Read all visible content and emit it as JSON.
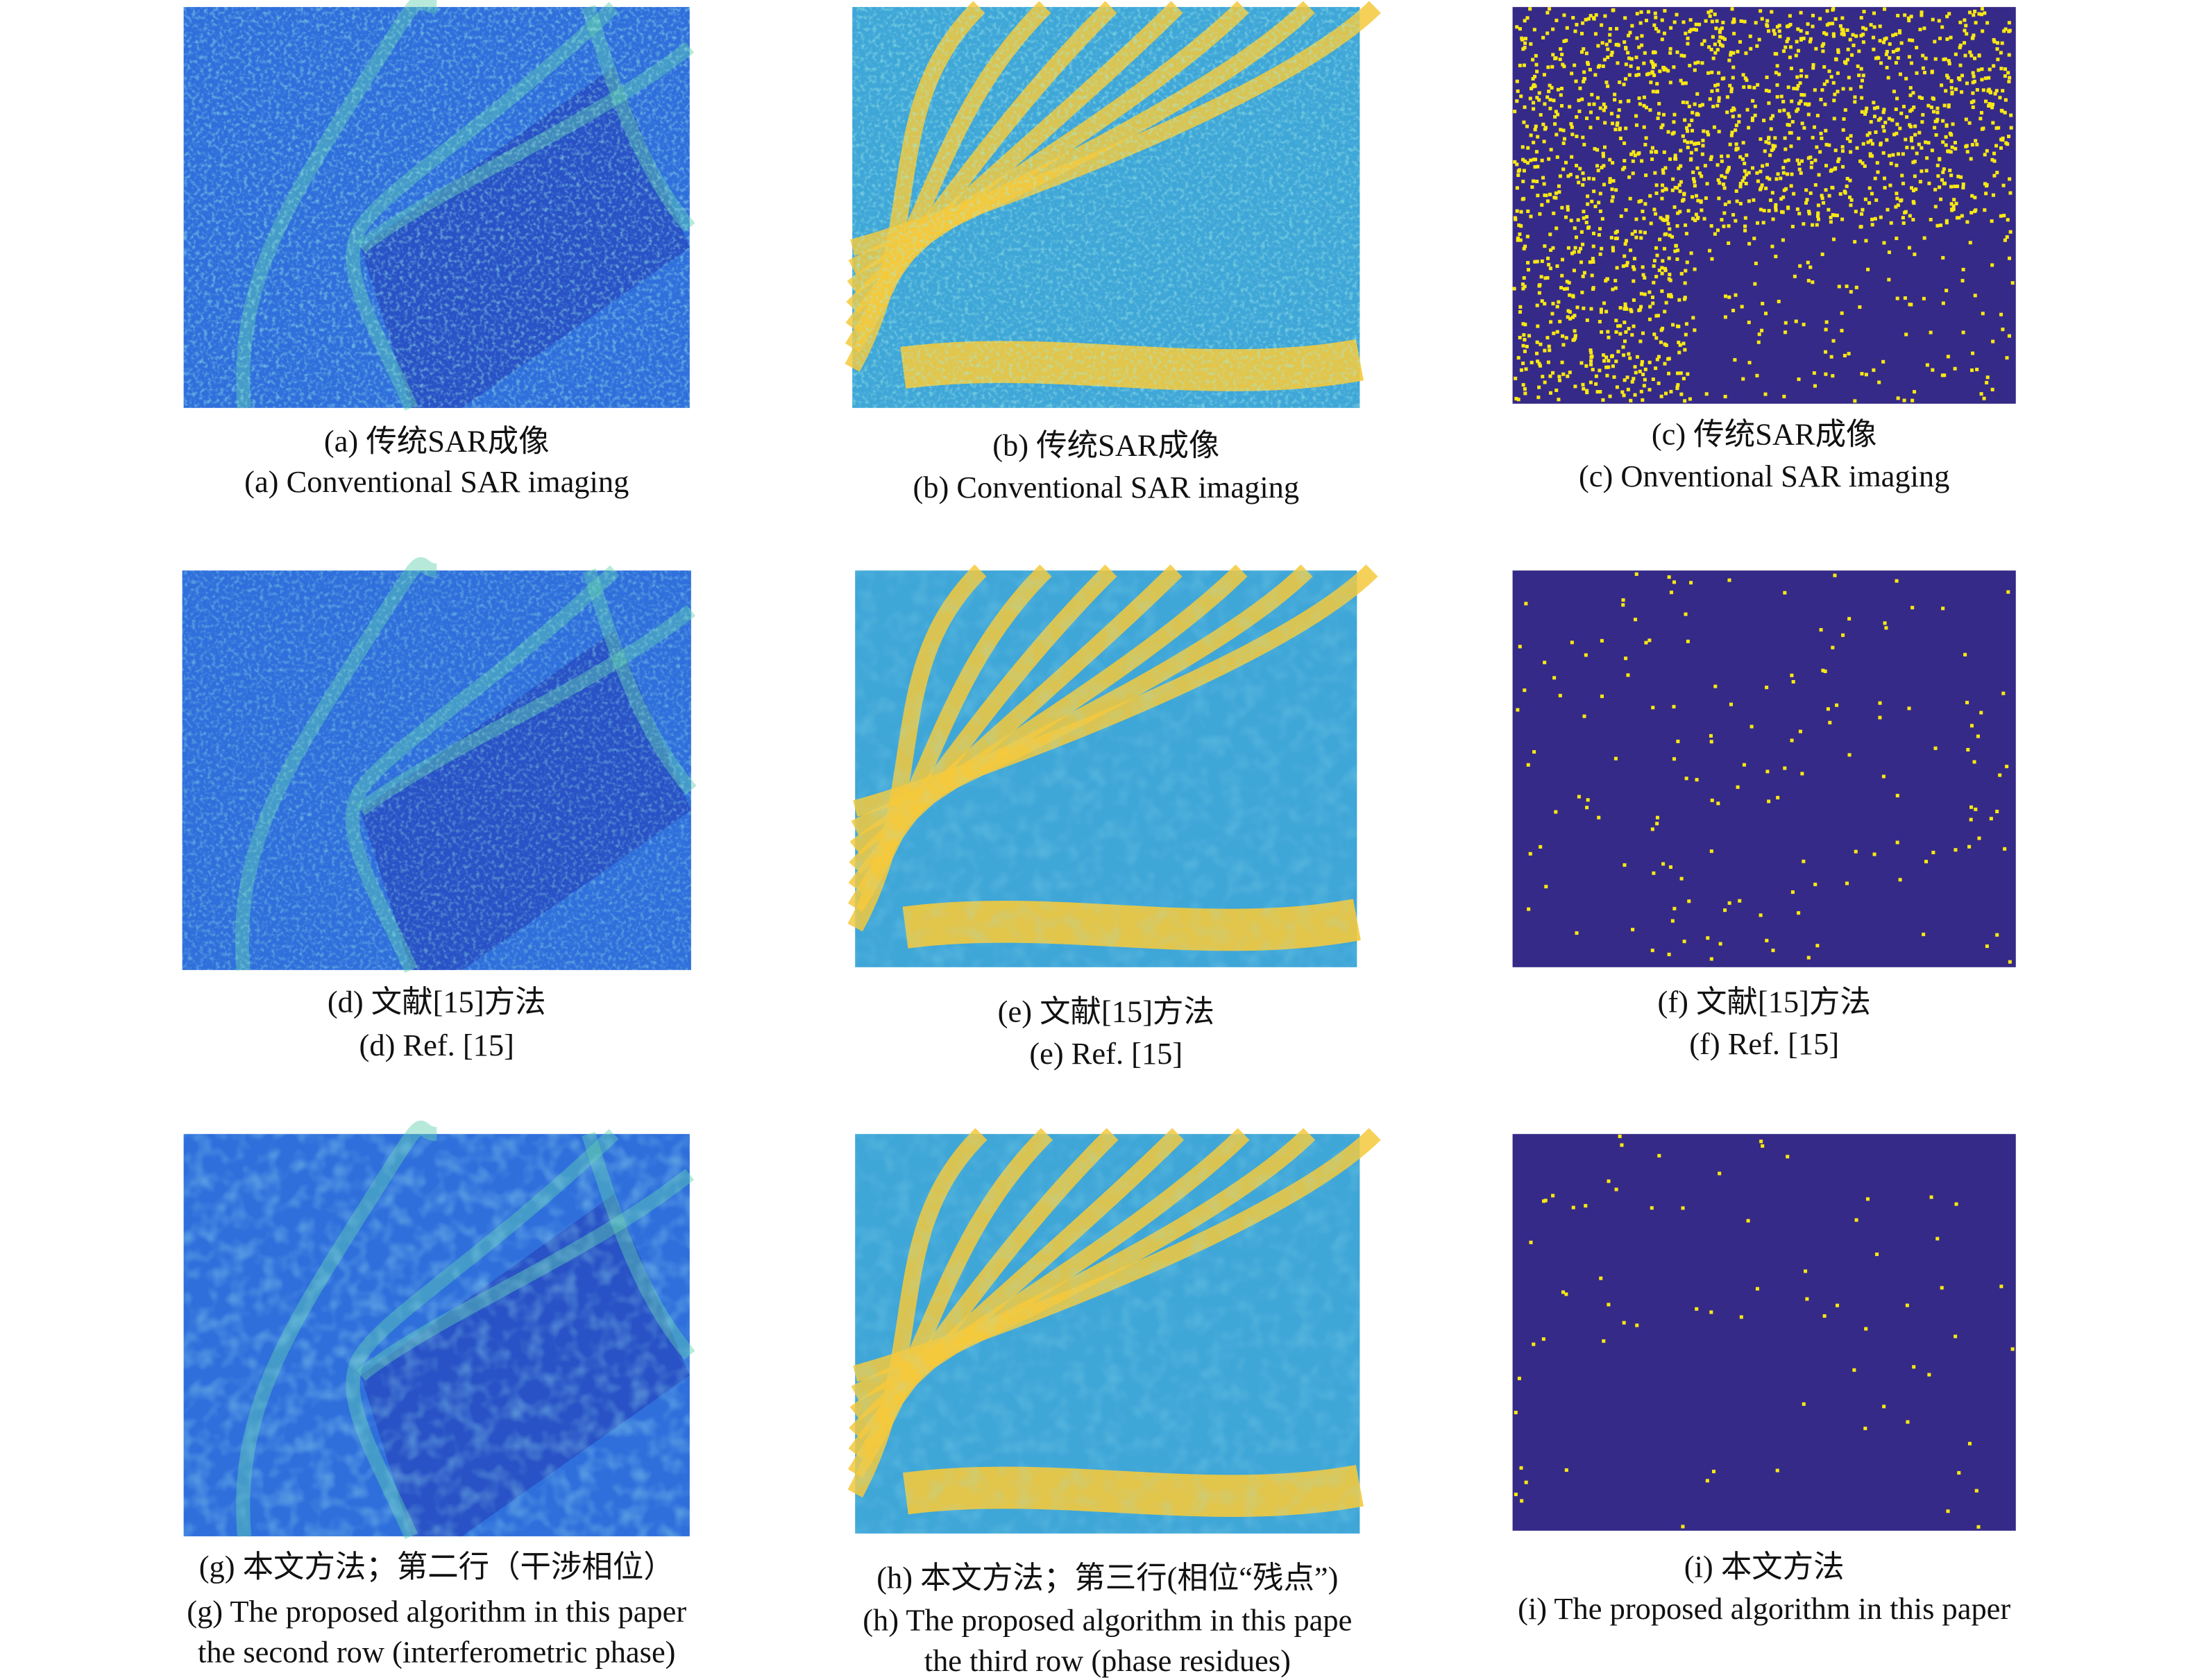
{
  "panels": [
    {
      "lines": [
        "(a) 传统SAR成像",
        "(a) Conventional SAR imaging"
      ]
    },
    {
      "lines": [
        "(b) 传统SAR成像",
        "(b) Conventional SAR imaging"
      ]
    },
    {
      "lines": [
        "(c) 传统SAR成像",
        "(c) Onventional SAR imaging"
      ]
    },
    {
      "lines": [
        "(d) 文献[15]方法",
        "(d) Ref. [15]"
      ]
    },
    {
      "lines": [
        "(e) 文献[15]方法",
        "(e) Ref. [15]"
      ]
    },
    {
      "lines": [
        "(f) 文献[15]方法",
        "(f) Ref. [15]"
      ]
    },
    {
      "lines": [
        "(g) 本文方法；第二行（干涉相位）",
        "(g) The proposed algorithm in this paper",
        "the second row (interferometric phase)"
      ]
    },
    {
      "lines": [
        "(h) 本文方法；第三行(相位“残点”)",
        "(h) The proposed algorithm in this pape",
        "the third row (phase residues)"
      ]
    },
    {
      "lines": [
        "(i) 本文方法",
        "(i) The proposed algorithm in this paper"
      ]
    }
  ]
}
